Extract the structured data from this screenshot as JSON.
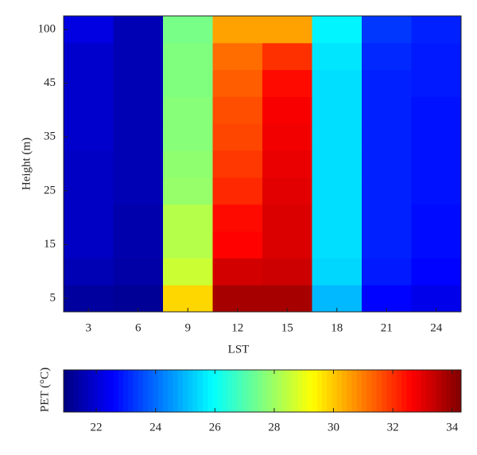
{
  "chart_data": {
    "type": "heatmap",
    "xlabel": "LST",
    "ylabel": "Height (m)",
    "x": [
      3,
      6,
      9,
      12,
      15,
      18,
      21,
      24
    ],
    "y": [
      5,
      null,
      15,
      null,
      25,
      null,
      35,
      null,
      45,
      null,
      100
    ],
    "z": [
      [
        21.3,
        21.2,
        29.8,
        33.8,
        33.8,
        25.0,
        22.6,
        22.3
      ],
      [
        21.6,
        21.4,
        28.6,
        33.2,
        33.3,
        25.4,
        22.9,
        22.6
      ],
      [
        21.8,
        21.5,
        28.3,
        32.6,
        33.1,
        25.5,
        23.0,
        22.7
      ],
      [
        21.8,
        21.5,
        28.3,
        32.5,
        33.1,
        25.5,
        23.0,
        22.7
      ],
      [
        21.8,
        21.6,
        27.9,
        32.1,
        33.0,
        25.5,
        23.0,
        22.8
      ],
      [
        21.8,
        21.6,
        27.8,
        31.9,
        32.9,
        25.5,
        23.0,
        22.8
      ],
      [
        21.9,
        21.6,
        27.7,
        31.7,
        32.8,
        25.5,
        23.0,
        22.8
      ],
      [
        21.9,
        21.6,
        27.7,
        31.6,
        32.7,
        25.5,
        23.0,
        22.8
      ],
      [
        21.9,
        21.6,
        27.6,
        31.4,
        32.5,
        25.5,
        23.0,
        22.9
      ],
      [
        21.9,
        21.6,
        27.6,
        31.2,
        32.0,
        25.6,
        23.1,
        22.9
      ],
      [
        22.2,
        21.6,
        27.5,
        30.5,
        30.5,
        25.8,
        23.3,
        23.0
      ]
    ],
    "colormap": "jet",
    "colorbar": {
      "label": "PET (°C)",
      "lim": [
        20.9,
        34.3
      ],
      "ticks": [
        22,
        24,
        26,
        28,
        30,
        32,
        34
      ]
    }
  }
}
